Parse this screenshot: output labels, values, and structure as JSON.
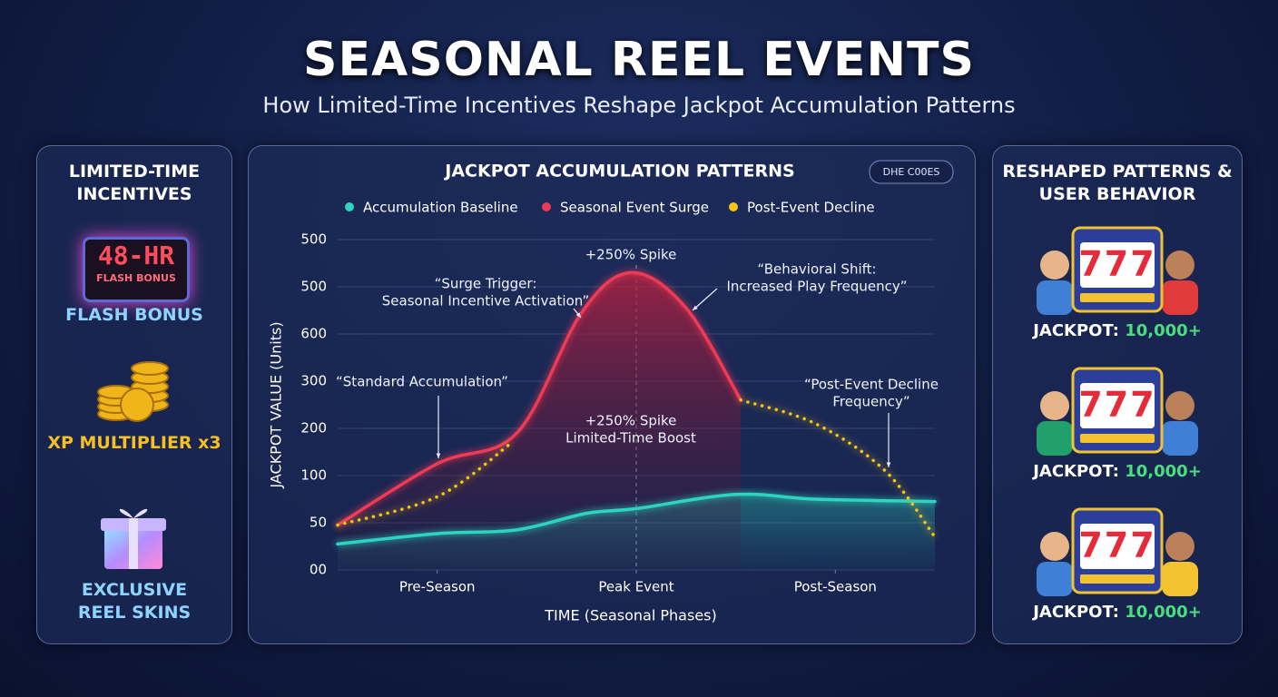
{
  "header": {
    "title": "SEASONAL REEL EVENTS",
    "subtitle": "How Limited-Time Incentives Reshape Jackpot Accumulation Patterns"
  },
  "left_panel": {
    "title": "LIMITED-TIME INCENTIVES",
    "items": [
      {
        "badge": "48-HR",
        "badge_sub": "FLASH BONUS",
        "label": "FLASH BONUS"
      },
      {
        "label": "XP MULTIPLIER x3"
      },
      {
        "label": "EXCLUSIVE REEL SKINS"
      }
    ]
  },
  "right_panel": {
    "title": "RESHAPED PATTERNS & USER BEHAVIOR",
    "cards": [
      {
        "reels": "777",
        "label": "JACKPOT:",
        "value": "10,000+"
      },
      {
        "reels": "777",
        "label": "JACKPOT:",
        "value": "10,000+"
      },
      {
        "reels": "777",
        "label": "JACKPOT:",
        "value": "10,000+"
      }
    ]
  },
  "chart_data": {
    "type": "line",
    "title": "JACKPOT ACCUMULATION PATTERNS",
    "badge": "DHE C00ES",
    "x_label": "TIME (Seasonal Phases)",
    "y_label": "JACKPOT VALUE (Units)",
    "xlim": [
      0,
      12
    ],
    "xticks": [
      {
        "value": 2,
        "label": "Pre-Season"
      },
      {
        "value": 6,
        "label": "Peak Event"
      },
      {
        "value": 10,
        "label": "Post-Season"
      }
    ],
    "ylim": [
      0,
      7
    ],
    "yticks": [
      {
        "value": 0,
        "label": "00"
      },
      {
        "value": 1,
        "label": "50"
      },
      {
        "value": 2,
        "label": "100"
      },
      {
        "value": 3,
        "label": "200"
      },
      {
        "value": 4,
        "label": "300"
      },
      {
        "value": 5,
        "label": "600"
      },
      {
        "value": 6,
        "label": "500"
      },
      {
        "value": 7,
        "label": "500"
      }
    ],
    "grid": true,
    "series": [
      {
        "name": "Accumulation Baseline",
        "color": "#2dd4bf",
        "style": "solid",
        "fill": true,
        "x": [
          0,
          2,
          3.6,
          5,
          6,
          8,
          9.6,
          12
        ],
        "values": [
          0.55,
          0.77,
          0.85,
          1.2,
          1.3,
          1.6,
          1.5,
          1.45
        ]
      },
      {
        "name": "Seasonal Event Surge",
        "color": "#ef3a55",
        "style": "solid",
        "fill": true,
        "x": [
          0,
          2,
          3.6,
          4.9,
          5.9,
          7,
          8.1
        ],
        "values": [
          0.95,
          2.25,
          2.9,
          5.45,
          6.3,
          5.55,
          3.6
        ]
      },
      {
        "name": "Post-Event Decline",
        "color": "#f5c518",
        "style": "dotted",
        "fill": false,
        "x": [
          0,
          2,
          3.5,
          5,
          8.1,
          9.6,
          11,
          12
        ],
        "values": [
          0.95,
          1.55,
          2.7,
          null,
          3.6,
          3.1,
          2.1,
          0.7
        ]
      }
    ],
    "annotations": [
      {
        "lines": [
          "+250% Spike"
        ]
      },
      {
        "lines": [
          "“Surge Trigger:",
          "Seasonal Incentive Activation”"
        ]
      },
      {
        "lines": [
          "“Behavioral Shift:",
          "Increased Play Frequency”"
        ]
      },
      {
        "lines": [
          "“Standard Accumulation”"
        ]
      },
      {
        "lines": [
          "+250% Spike",
          "Limited-Time Boost"
        ]
      },
      {
        "lines": [
          "“Post-Event Decline",
          "Frequency”"
        ]
      }
    ]
  }
}
